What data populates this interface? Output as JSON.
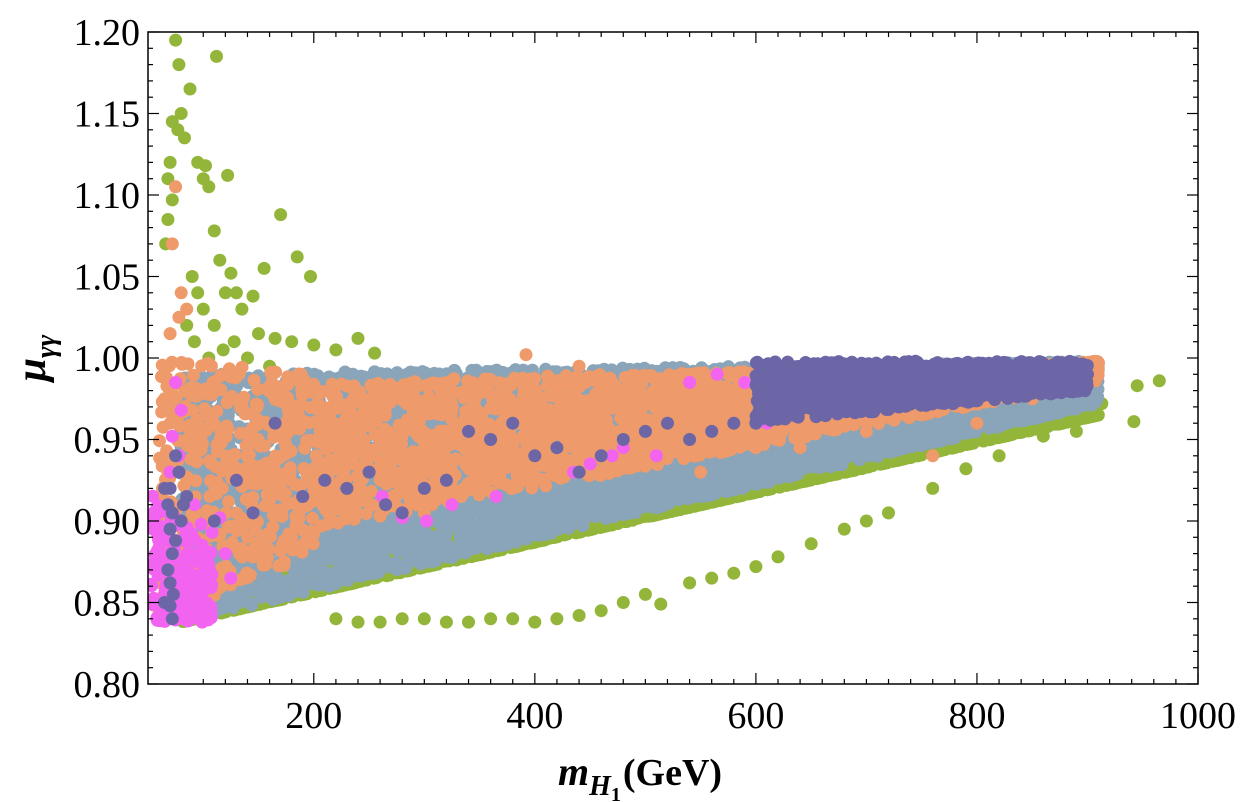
{
  "chart_data": {
    "type": "scatter",
    "title": "",
    "xlabel": {
      "main": "m",
      "sub": "H",
      "subsub": "1",
      "unit": "(GeV)"
    },
    "ylabel": {
      "main": "μ",
      "sub": "γγ"
    },
    "xlim": [
      50,
      1000
    ],
    "ylim": [
      0.8,
      1.2
    ],
    "x_ticks": [
      200,
      400,
      600,
      800,
      1000
    ],
    "x_tick_labels": [
      "200",
      "400",
      "600",
      "800",
      "1000"
    ],
    "y_ticks": [
      0.8,
      0.85,
      0.9,
      0.95,
      1.0,
      1.05,
      1.1,
      1.15,
      1.2
    ],
    "y_tick_labels": [
      "0.80",
      "0.85",
      "0.90",
      "0.95",
      "1.00",
      "1.05",
      "1.10",
      "1.15",
      "1.20"
    ],
    "legend": "none",
    "grid": false,
    "series": [
      {
        "name": "green",
        "color": "#93b63a",
        "bands": [
          {
            "x": [
              80,
              910
            ],
            "y_low_at_x0": 0.838,
            "y_low_at_x1": 0.965,
            "y_high_at_x0": 1.0,
            "y_high_at_x1": 1.0
          }
        ],
        "points": [
          [
            75,
            1.195
          ],
          [
            78,
            1.18
          ],
          [
            80,
            1.15
          ],
          [
            77,
            1.14
          ],
          [
            72,
            1.145
          ],
          [
            70,
            1.12
          ],
          [
            68,
            1.11
          ],
          [
            72,
            1.097
          ],
          [
            68,
            1.085
          ],
          [
            66,
            1.07
          ],
          [
            83,
            1.135
          ],
          [
            88,
            1.165
          ],
          [
            95,
            1.12
          ],
          [
            100,
            1.11
          ],
          [
            102,
            1.118
          ],
          [
            105,
            1.105
          ],
          [
            112,
            1.185
          ],
          [
            122,
            1.112
          ],
          [
            110,
            1.078
          ],
          [
            115,
            1.06
          ],
          [
            125,
            1.052
          ],
          [
            130,
            1.04
          ],
          [
            145,
            1.038
          ],
          [
            155,
            1.055
          ],
          [
            170,
            1.088
          ],
          [
            185,
            1.062
          ],
          [
            197,
            1.05
          ],
          [
            120,
            1.04
          ],
          [
            135,
            1.03
          ],
          [
            150,
            1.015
          ],
          [
            165,
            1.012
          ],
          [
            180,
            1.01
          ],
          [
            200,
            1.008
          ],
          [
            220,
            1.005
          ],
          [
            240,
            1.012
          ],
          [
            255,
            1.003
          ],
          [
            90,
            1.05
          ],
          [
            95,
            1.04
          ],
          [
            100,
            1.03
          ],
          [
            85,
            1.02
          ],
          [
            92,
            1.01
          ],
          [
            105,
            1.0
          ],
          [
            110,
            1.02
          ],
          [
            118,
            1.005
          ],
          [
            128,
            1.01
          ],
          [
            140,
            1.0
          ],
          [
            160,
            0.995
          ],
          [
            965,
            0.986
          ],
          [
            945,
            0.983
          ],
          [
            942,
            0.961
          ],
          [
            913,
            0.972
          ],
          [
            905,
            0.965
          ],
          [
            890,
            0.955
          ],
          [
            860,
            0.952
          ],
          [
            820,
            0.94
          ],
          [
            790,
            0.932
          ],
          [
            760,
            0.92
          ],
          [
            720,
            0.905
          ],
          [
            700,
            0.9
          ],
          [
            680,
            0.895
          ],
          [
            650,
            0.886
          ],
          [
            620,
            0.878
          ],
          [
            600,
            0.872
          ],
          [
            580,
            0.868
          ],
          [
            560,
            0.865
          ],
          [
            540,
            0.862
          ],
          [
            514,
            0.849
          ],
          [
            500,
            0.855
          ],
          [
            480,
            0.85
          ],
          [
            460,
            0.845
          ],
          [
            440,
            0.842
          ],
          [
            420,
            0.84
          ],
          [
            400,
            0.838
          ],
          [
            380,
            0.84
          ],
          [
            360,
            0.84
          ],
          [
            340,
            0.838
          ],
          [
            320,
            0.838
          ],
          [
            300,
            0.84
          ],
          [
            280,
            0.84
          ],
          [
            260,
            0.838
          ],
          [
            240,
            0.838
          ],
          [
            220,
            0.84
          ]
        ]
      },
      {
        "name": "steel-blue",
        "color": "#8aa5b9",
        "bands": [
          {
            "x": [
              80,
              910
            ],
            "y_low_at_x0": 0.838,
            "y_low_at_x1": 0.972,
            "y_high_at_x0": 0.99,
            "y_high_at_x1": 0.998
          }
        ],
        "points": []
      },
      {
        "name": "orange",
        "color": "#ee9a6a",
        "bands": [
          {
            "x": [
              60,
              200
            ],
            "y_low_at_x0": 0.84,
            "y_low_at_x1": 0.88,
            "y_high_at_x0": 1.0,
            "y_high_at_x1": 0.99
          },
          {
            "x": [
              200,
              910
            ],
            "y_low_at_x0": 0.895,
            "y_low_at_x1": 0.985,
            "y_high_at_x0": 0.985,
            "y_high_at_x1": 0.998
          }
        ],
        "points": [
          [
            75,
            1.105
          ],
          [
            72,
            1.07
          ],
          [
            80,
            1.04
          ],
          [
            78,
            1.025
          ],
          [
            70,
            1.015
          ],
          [
            85,
            1.03
          ],
          [
            65,
            0.975
          ],
          [
            70,
            0.96
          ],
          [
            68,
            0.93
          ],
          [
            65,
            0.905
          ],
          [
            75,
            0.88
          ],
          [
            80,
            0.86
          ],
          [
            140,
            0.89
          ],
          [
            155,
            0.883
          ],
          [
            180,
            0.89
          ],
          [
            230,
            0.915
          ],
          [
            260,
            0.903
          ],
          [
            300,
            0.905
          ],
          [
            350,
            0.92
          ],
          [
            392,
            1.002
          ],
          [
            440,
            0.995
          ],
          [
            470,
            0.985
          ],
          [
            510,
            0.94
          ],
          [
            550,
            0.93
          ],
          [
            600,
            0.945
          ],
          [
            640,
            0.945
          ],
          [
            700,
            0.955
          ],
          [
            760,
            0.94
          ],
          [
            800,
            0.96
          ],
          [
            850,
            0.975
          ],
          [
            895,
            0.99
          ],
          [
            910,
            0.997
          ]
        ]
      },
      {
        "name": "magenta",
        "color": "#f264f0",
        "bands": [
          {
            "x": [
              52,
              108
            ],
            "y_low_at_x0": 0.838,
            "y_low_at_x1": 0.838,
            "y_high_at_x0": 0.92,
            "y_high_at_x1": 0.88
          }
        ],
        "points": [
          [
            75,
            0.985
          ],
          [
            80,
            0.968
          ],
          [
            72,
            0.952
          ],
          [
            78,
            0.94
          ],
          [
            70,
            0.93
          ],
          [
            92,
            0.91
          ],
          [
            98,
            0.898
          ],
          [
            115,
            0.902
          ],
          [
            108,
            0.893
          ],
          [
            120,
            0.88
          ],
          [
            125,
            0.865
          ],
          [
            262,
            0.915
          ],
          [
            280,
            0.902
          ],
          [
            302,
            0.9
          ],
          [
            325,
            0.91
          ],
          [
            365,
            0.915
          ],
          [
            435,
            0.93
          ],
          [
            450,
            0.935
          ],
          [
            470,
            0.94
          ],
          [
            480,
            0.945
          ],
          [
            510,
            0.94
          ],
          [
            540,
            0.985
          ],
          [
            565,
            0.99
          ],
          [
            590,
            0.985
          ],
          [
            610,
            0.96
          ],
          [
            720,
            0.975
          ]
        ]
      },
      {
        "name": "purple",
        "color": "#6c66a6",
        "bands": [
          {
            "x": [
              600,
              900
            ],
            "y_low_at_x0": 0.96,
            "y_low_at_x1": 0.98,
            "y_high_at_x0": 0.998,
            "y_high_at_x1": 0.998
          }
        ],
        "points": [
          [
            68,
            0.91
          ],
          [
            72,
            0.905
          ],
          [
            70,
            0.895
          ],
          [
            75,
            0.888
          ],
          [
            72,
            0.88
          ],
          [
            68,
            0.87
          ],
          [
            70,
            0.862
          ],
          [
            73,
            0.855
          ],
          [
            70,
            0.848
          ],
          [
            72,
            0.84
          ],
          [
            65,
            0.92
          ],
          [
            78,
            0.93
          ],
          [
            75,
            0.94
          ],
          [
            70,
            0.92
          ],
          [
            65,
            0.85
          ],
          [
            80,
            0.9
          ],
          [
            82,
            0.91
          ],
          [
            85,
            0.915
          ],
          [
            110,
            0.9
          ],
          [
            130,
            0.925
          ],
          [
            145,
            0.905
          ],
          [
            165,
            0.96
          ],
          [
            190,
            0.915
          ],
          [
            210,
            0.925
          ],
          [
            230,
            0.92
          ],
          [
            250,
            0.93
          ],
          [
            265,
            0.91
          ],
          [
            280,
            0.905
          ],
          [
            300,
            0.92
          ],
          [
            320,
            0.925
          ],
          [
            340,
            0.955
          ],
          [
            360,
            0.95
          ],
          [
            380,
            0.96
          ],
          [
            400,
            0.94
          ],
          [
            420,
            0.945
          ],
          [
            440,
            0.93
          ],
          [
            460,
            0.94
          ],
          [
            480,
            0.95
          ],
          [
            500,
            0.955
          ],
          [
            520,
            0.96
          ],
          [
            540,
            0.95
          ],
          [
            560,
            0.955
          ],
          [
            580,
            0.96
          ],
          [
            600,
            0.96
          ],
          [
            620,
            0.965
          ],
          [
            640,
            0.975
          ],
          [
            660,
            0.985
          ],
          [
            680,
            0.99
          ],
          [
            700,
            0.995
          ],
          [
            720,
            0.99
          ],
          [
            740,
            0.98
          ],
          [
            760,
            0.975
          ],
          [
            780,
            0.985
          ],
          [
            800,
            0.99
          ],
          [
            820,
            0.985
          ],
          [
            840,
            0.978
          ],
          [
            860,
            0.99
          ],
          [
            880,
            0.98
          ],
          [
            900,
            0.99
          ]
        ]
      }
    ]
  }
}
